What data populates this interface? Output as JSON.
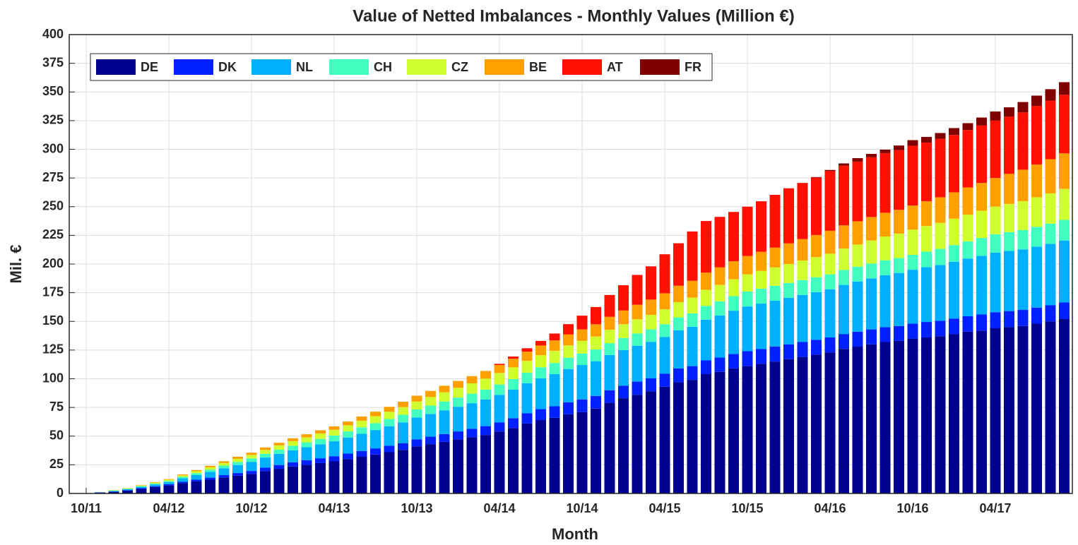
{
  "chart_data": {
    "type": "stacked_bar",
    "title": "Value of Netted Imbalances - Monthly Values  (Million €)",
    "x_label": "Month",
    "y_label": "Mil. €",
    "categories": [
      "10/11",
      null,
      null,
      null,
      null,
      null,
      "04/12",
      null,
      null,
      null,
      null,
      null,
      "10/12",
      null,
      null,
      null,
      null,
      null,
      "04/13",
      null,
      null,
      null,
      null,
      null,
      "10/13",
      null,
      null,
      null,
      null,
      null,
      "04/14",
      null,
      null,
      null,
      null,
      null,
      "10/14",
      null,
      null,
      null,
      null,
      null,
      "04/15",
      null,
      null,
      null,
      null,
      null,
      "10/15",
      null,
      null,
      null,
      null,
      null,
      "04/16",
      null,
      null,
      null,
      null,
      null,
      "10/16",
      null,
      null,
      null,
      null,
      null,
      "04/17",
      null,
      null,
      null,
      null,
      null
    ],
    "ylim": [
      0,
      400
    ],
    "yticks": [
      0,
      25,
      50,
      75,
      100,
      125,
      150,
      175,
      200,
      225,
      250,
      275,
      300,
      325,
      350,
      375,
      400
    ],
    "grid": true,
    "legend": "top-left",
    "series": [
      {
        "name": "DE",
        "color": "#00008f",
        "values": [
          0.2,
          0.8,
          1.5,
          2.5,
          4,
          5.5,
          7,
          9,
          10.5,
          12,
          14,
          15.5,
          17,
          19.5,
          21.5,
          23.5,
          25,
          26.5,
          28,
          30,
          32,
          34,
          36,
          38,
          41,
          43,
          45,
          47,
          49,
          51,
          54,
          57,
          61,
          64,
          66,
          69,
          71,
          74,
          79,
          83,
          86,
          89,
          93,
          97,
          99,
          104,
          106,
          109,
          111,
          113,
          115,
          117,
          119,
          121,
          123,
          126,
          128,
          130,
          132,
          133,
          135,
          136,
          137,
          139,
          141,
          142,
          144,
          145,
          146,
          148,
          150,
          152
        ]
      },
      {
        "name": "DK",
        "color": "#0020ff",
        "values": [
          0,
          0.1,
          0.2,
          0.4,
          0.6,
          0.8,
          1,
          1.2,
          1.5,
          1.8,
          2,
          2.3,
          2.6,
          3,
          3.3,
          3.6,
          4,
          4.2,
          4.5,
          4.8,
          5,
          5.3,
          5.6,
          5.9,
          6.2,
          6.5,
          6.8,
          7.1,
          7.4,
          7.7,
          8,
          8.5,
          9,
          9.5,
          10,
          10.5,
          11,
          11,
          11,
          11,
          11.5,
          11.5,
          11.5,
          12,
          12,
          12,
          12.5,
          12.5,
          13,
          13,
          13,
          13,
          13,
          13,
          13,
          13,
          13,
          13,
          13,
          13,
          13,
          13.5,
          13.5,
          13.5,
          13.5,
          14,
          14,
          14,
          14,
          14,
          14,
          14.5
        ]
      },
      {
        "name": "NL",
        "color": "#00b0ff",
        "values": [
          0,
          0.2,
          0.5,
          0.8,
          1.2,
          1.6,
          2,
          3,
          4,
          5,
          6,
          7,
          8,
          8.8,
          9.7,
          10.5,
          11.3,
          12.2,
          13,
          14,
          15,
          16,
          17,
          18,
          19,
          19.8,
          20.7,
          21.5,
          22.3,
          23.2,
          24,
          25,
          26,
          27,
          28,
          29,
          30,
          30.3,
          30.7,
          31,
          31.3,
          31.7,
          32,
          33.2,
          34.3,
          35.5,
          36.7,
          37.8,
          39,
          39.5,
          40,
          40.5,
          41,
          41.5,
          42,
          42.8,
          43.7,
          44.5,
          45.3,
          46.2,
          47,
          47.8,
          48.7,
          49.5,
          50.3,
          51.2,
          52,
          52.4,
          52.8,
          53.2,
          53.6,
          54
        ]
      },
      {
        "name": "CH",
        "color": "#40ffc0",
        "values": [
          0,
          0.1,
          0.3,
          0.4,
          0.6,
          0.8,
          1,
          1.3,
          1.7,
          2,
          2.3,
          2.7,
          3,
          3.3,
          3.7,
          4,
          4.3,
          4.7,
          5,
          5.3,
          5.7,
          6,
          6.3,
          6.7,
          7,
          7.3,
          7.7,
          8,
          8.3,
          8.7,
          9,
          9.2,
          9.3,
          9.5,
          9.7,
          9.8,
          10,
          10.2,
          10.3,
          10.5,
          10.7,
          10.8,
          11,
          11.3,
          11.7,
          12,
          12.3,
          12.7,
          13,
          13,
          13,
          13,
          13,
          13,
          13,
          13,
          13,
          13,
          13,
          13,
          13,
          13.5,
          14,
          14.5,
          15,
          15.5,
          16,
          16.4,
          16.8,
          17.2,
          17.6,
          18
        ]
      },
      {
        "name": "CZ",
        "color": "#d0ff30",
        "values": [
          0,
          0.1,
          0.3,
          0.4,
          0.6,
          0.8,
          1,
          1.3,
          1.7,
          2,
          2.3,
          2.7,
          3,
          3.3,
          3.7,
          4,
          4.3,
          4.7,
          5,
          5.3,
          5.7,
          6,
          6.3,
          6.7,
          7,
          7.5,
          8,
          8.5,
          9,
          9.5,
          10,
          10.2,
          10.3,
          10.5,
          10.7,
          10.8,
          11,
          11.3,
          11.7,
          12,
          12.3,
          12.7,
          13,
          13.3,
          13.7,
          14,
          14.3,
          14.7,
          15,
          15.5,
          16,
          16.5,
          17,
          17.5,
          18,
          18.7,
          19.3,
          20,
          20.7,
          21.3,
          22,
          22.3,
          22.7,
          23,
          23.3,
          23.7,
          24,
          24.6,
          25.2,
          25.8,
          26.4,
          27
        ]
      },
      {
        "name": "BE",
        "color": "#ffa000",
        "values": [
          0,
          0,
          0.1,
          0.2,
          0.3,
          0.4,
          0.5,
          0.8,
          1,
          1.3,
          1.5,
          1.8,
          2,
          2.2,
          2.3,
          2.5,
          2.7,
          2.8,
          3,
          3.3,
          3.7,
          4,
          4.3,
          4.7,
          5,
          5.3,
          5.7,
          6,
          6.3,
          6.7,
          7,
          7.5,
          8,
          8.5,
          9,
          9.5,
          10,
          10.7,
          11.3,
          12,
          12.7,
          13.3,
          14,
          14.3,
          14.7,
          15,
          15.3,
          15.7,
          16,
          16.7,
          17.3,
          18,
          18.7,
          19.3,
          20,
          20.2,
          20.3,
          20.5,
          20.7,
          20.8,
          21,
          21.7,
          22.3,
          23,
          23.7,
          24.3,
          25,
          26.2,
          27.4,
          28.6,
          29.8,
          31
        ]
      },
      {
        "name": "AT",
        "color": "#ff1000",
        "values": [
          0,
          0,
          0,
          0,
          0,
          0,
          0,
          0,
          0,
          0,
          0,
          0,
          0,
          0,
          0,
          0,
          0,
          0,
          0,
          0,
          0,
          0,
          0,
          0,
          0,
          0,
          0,
          0,
          0,
          0,
          1,
          2,
          3,
          4,
          6,
          9,
          12,
          15,
          19,
          22,
          26,
          29,
          34,
          37,
          43,
          45,
          44,
          43,
          43,
          44,
          46,
          48,
          49,
          50,
          52,
          52,
          52,
          52,
          52,
          52,
          52,
          51,
          51,
          50,
          50,
          50,
          50,
          50,
          50,
          51,
          51,
          51
        ]
      },
      {
        "name": "FR",
        "color": "#800000",
        "values": [
          0,
          0,
          0,
          0,
          0,
          0,
          0,
          0,
          0,
          0,
          0,
          0,
          0,
          0,
          0,
          0,
          0,
          0,
          0,
          0,
          0,
          0,
          0,
          0,
          0,
          0,
          0,
          0,
          0,
          0,
          0,
          0,
          0,
          0,
          0,
          0,
          0,
          0,
          0,
          0,
          0,
          0,
          0,
          0,
          0,
          0,
          0,
          0,
          0,
          0,
          0,
          0,
          0,
          0.5,
          1,
          2,
          3,
          3,
          3,
          4,
          5,
          5,
          5,
          6,
          6,
          7,
          8,
          8,
          9,
          9,
          10,
          11
        ]
      }
    ]
  }
}
